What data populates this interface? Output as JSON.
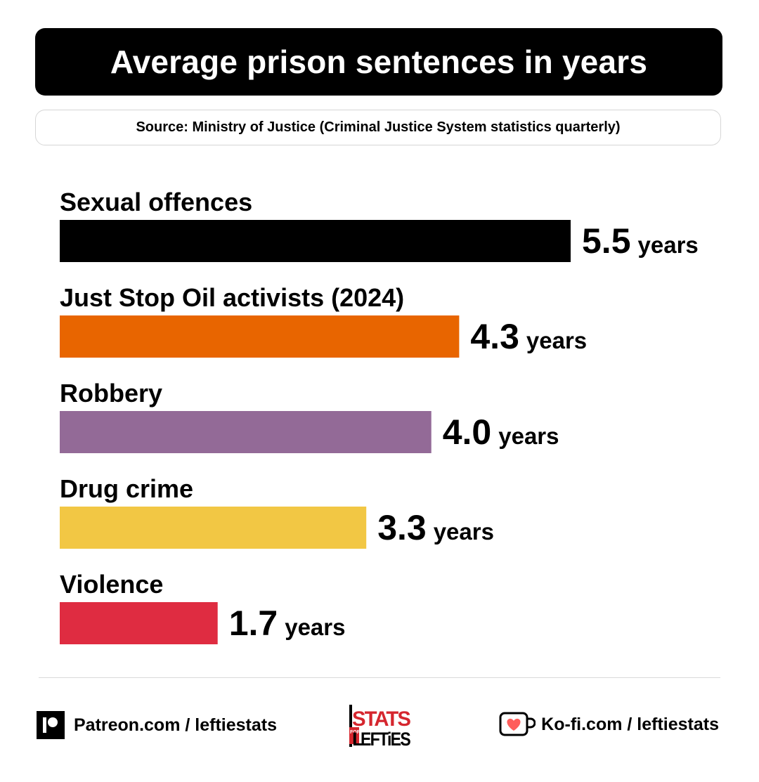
{
  "header": {
    "title": "Average prison sentences in years",
    "source": "Source: Ministry of Justice (Criminal Justice System statistics quarterly)"
  },
  "chart_data": {
    "type": "bar",
    "orientation": "horizontal",
    "title": "Average prison sentences in years",
    "categories": [
      "Sexual offences",
      "Just Stop Oil activists (2024)",
      "Robbery",
      "Drug crime",
      "Violence"
    ],
    "values": [
      5.5,
      4.3,
      4.0,
      3.3,
      1.7
    ],
    "value_labels": [
      "5.5",
      "4.3",
      "4.0",
      "3.3",
      "1.7"
    ],
    "unit": "years",
    "colors": [
      "#000000",
      "#e86500",
      "#936a97",
      "#f2c744",
      "#df2c41"
    ],
    "xlim": [
      0,
      5.5
    ],
    "grid": false,
    "legend": "none"
  },
  "footer": {
    "patreon_label": "Patreon.com / leftiestats",
    "patreon_icon": "patreon-icon",
    "kofi_label": "Ko-fi.com / leftiestats",
    "kofi_icon": "kofi-cup-icon",
    "logo": {
      "top": "STATS",
      "for": "FOR",
      "bottom": "EFTiES",
      "initial": "L"
    }
  }
}
